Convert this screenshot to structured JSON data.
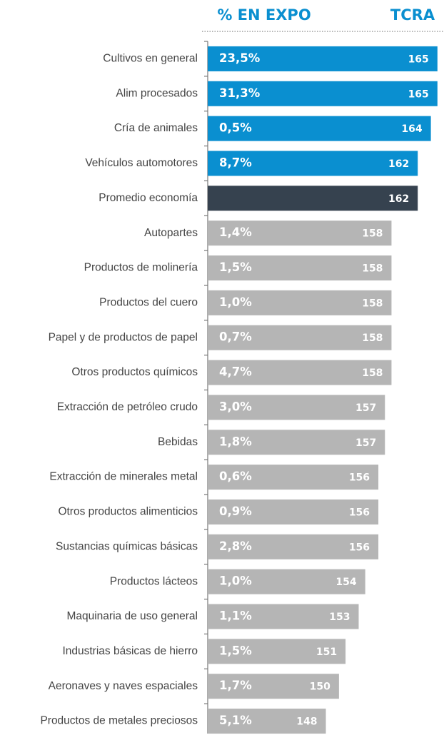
{
  "chart_data": {
    "type": "bar",
    "orientation": "horizontal",
    "categories": [
      "Cultivos en general",
      "Alim procesados",
      "Cría de animales",
      "Vehículos automotores",
      "Promedio economía",
      "Autopartes",
      "Productos de molinería",
      "Productos del cuero",
      "Papel y de productos de papel",
      "Otros productos químicos",
      "Extracción de petróleo crudo",
      "Bebidas",
      "Extracción de minerales metal",
      "Otros productos alimenticios",
      "Sustancias químicas básicas",
      "Productos lácteos",
      "Maquinaria de uso general",
      "Industrias básicas de hierro",
      "Aeronaves y naves espaciales",
      "Productos de metales preciosos"
    ],
    "series": [
      {
        "name": "TCRA",
        "values": [
          165,
          165,
          164,
          162,
          162,
          158,
          158,
          158,
          158,
          158,
          157,
          157,
          156,
          156,
          156,
          154,
          153,
          151,
          150,
          148
        ],
        "colors": [
          "#0a8fd0",
          "#0a8fd0",
          "#0a8fd0",
          "#0a8fd0",
          "#36424f",
          "#b5b5b5",
          "#b5b5b5",
          "#b5b5b5",
          "#b5b5b5",
          "#b5b5b5",
          "#b5b5b5",
          "#b5b5b5",
          "#b5b5b5",
          "#b5b5b5",
          "#b5b5b5",
          "#b5b5b5",
          "#b5b5b5",
          "#b5b5b5",
          "#b5b5b5",
          "#b5b5b5"
        ]
      },
      {
        "name": "% EN EXPO",
        "values": [
          23.5,
          31.3,
          0.5,
          8.7,
          null,
          1.4,
          1.5,
          1.0,
          0.7,
          4.7,
          3.0,
          1.8,
          0.6,
          0.9,
          2.8,
          1.0,
          1.1,
          1.5,
          1.7,
          5.1
        ],
        "value_labels": [
          "23,5%",
          "31,3%",
          "0,5%",
          "8,7%",
          null,
          "1,4%",
          "1,5%",
          "1,0%",
          "0,7%",
          "4,7%",
          "3,0%",
          "1,8%",
          "0,6%",
          "0,9%",
          "2,8%",
          "1,0%",
          "1,1%",
          "1,5%",
          "1,7%",
          "5,1%"
        ]
      }
    ],
    "header_color": "#0a8fd0",
    "xlim": [
      130,
      166
    ]
  }
}
